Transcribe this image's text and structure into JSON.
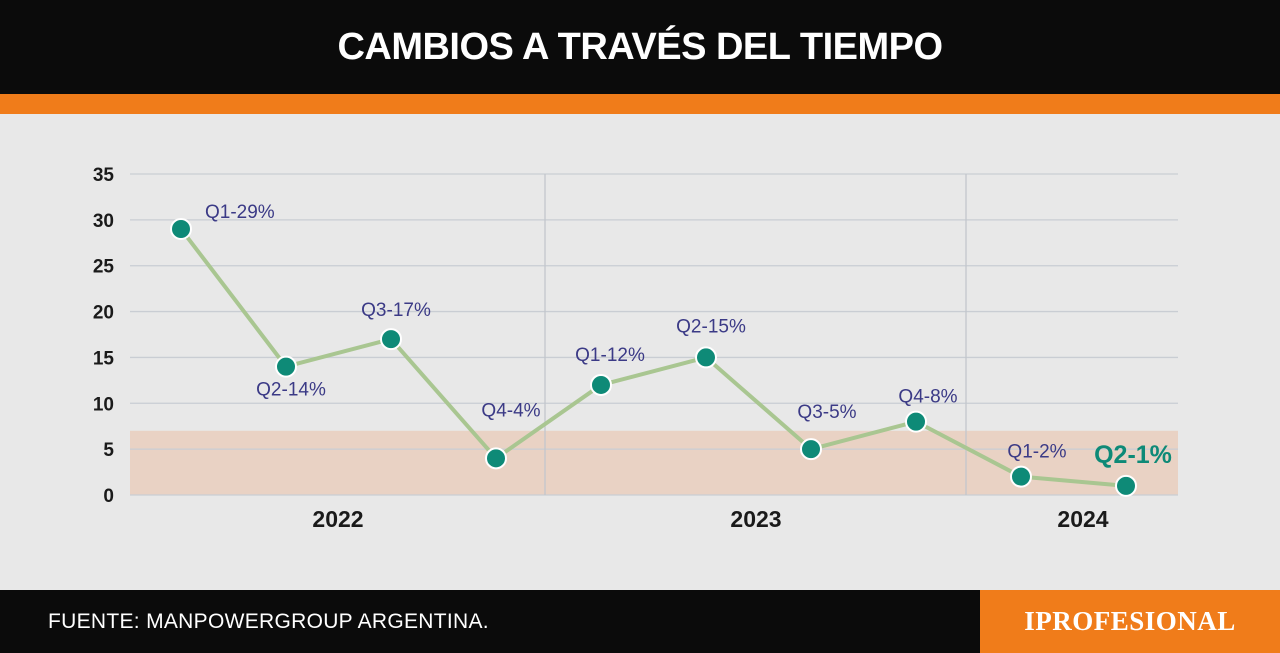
{
  "header": {
    "title": "CAMBIOS A TRAVÉS DEL TIEMPO"
  },
  "footer": {
    "source": "FUENTE: MANPOWERGROUP ARGENTINA.",
    "brand": "IPROFESIONAL"
  },
  "colors": {
    "header_bg": "#0b0b0b",
    "accent": "#f07c1a",
    "background": "#e8e8e8",
    "line": "#a9c691",
    "marker": "#0e8a77",
    "label": "#3b3a86",
    "highlight_label": "#0e8a77",
    "band": "#e9d2c4"
  },
  "chart_data": {
    "type": "line",
    "title": "CAMBIOS A TRAVÉS DEL TIEMPO",
    "xlabel": "",
    "ylabel": "",
    "ylim": [
      0,
      35
    ],
    "yticks": [
      0,
      5,
      10,
      15,
      20,
      25,
      30,
      35
    ],
    "grid": true,
    "years": [
      "2022",
      "2023",
      "2024"
    ],
    "band": {
      "from": 0,
      "to": 7
    },
    "series": [
      {
        "values": [
          29,
          14,
          17,
          4,
          12,
          15,
          5,
          8,
          2,
          1
        ],
        "labels": [
          "Q1-29%",
          "Q2-14%",
          "Q3-17%",
          "Q4-4%",
          "Q1-12%",
          "Q2-15%",
          "Q3-5%",
          "Q4-8%",
          "Q1-2%",
          "Q2-1%"
        ],
        "x": [
          "2022 Q1",
          "2022 Q2",
          "2022 Q3",
          "2022 Q4",
          "2023 Q1",
          "2023 Q2",
          "2023 Q3",
          "2023 Q4",
          "2024 Q1",
          "2024 Q2"
        ]
      }
    ]
  }
}
